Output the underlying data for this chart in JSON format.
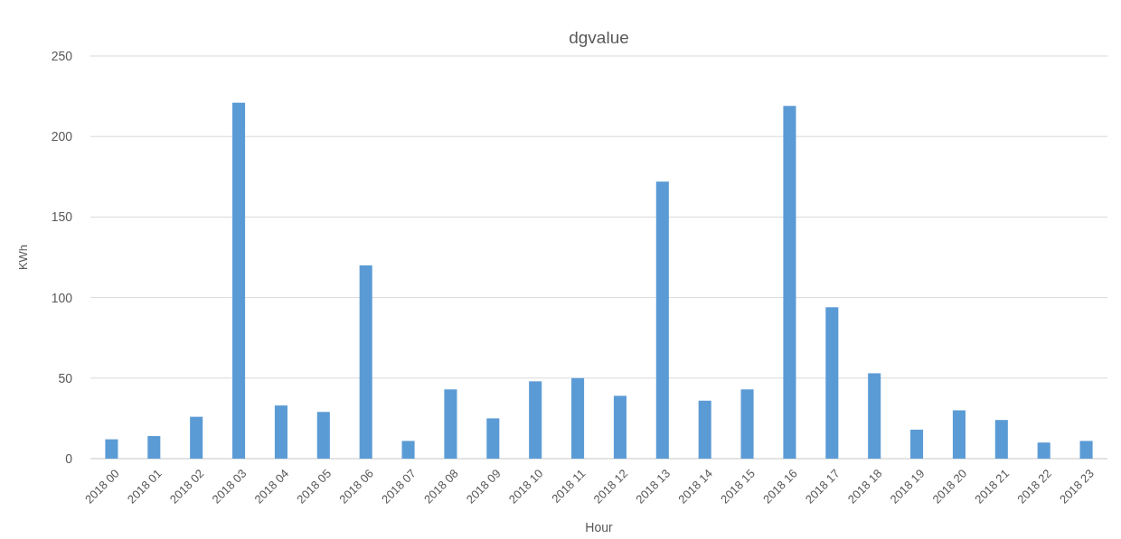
{
  "chart_data": {
    "type": "bar",
    "title": "dgvalue",
    "xlabel": "Hour",
    "ylabel": "KWh",
    "categories": [
      "2018 00",
      "2018 01",
      "2018 02",
      "2018 03",
      "2018 04",
      "2018 05",
      "2018 06",
      "2018 07",
      "2018 08",
      "2018 09",
      "2018 10",
      "2018 11",
      "2018 12",
      "2018 13",
      "2018 14",
      "2018 15",
      "2018 16",
      "2018 17",
      "2018 18",
      "2018 19",
      "2018 20",
      "2018 21",
      "2018 22",
      "2018 23"
    ],
    "values": [
      12,
      14,
      26,
      221,
      33,
      29,
      120,
      11,
      43,
      25,
      48,
      50,
      39,
      172,
      36,
      43,
      219,
      94,
      53,
      18,
      30,
      24,
      10,
      11
    ],
    "color": "#5b9bd5",
    "ylim": [
      0,
      250
    ],
    "yticks": [
      0,
      50,
      100,
      150,
      200,
      250
    ],
    "grid": "y",
    "legend": false
  }
}
